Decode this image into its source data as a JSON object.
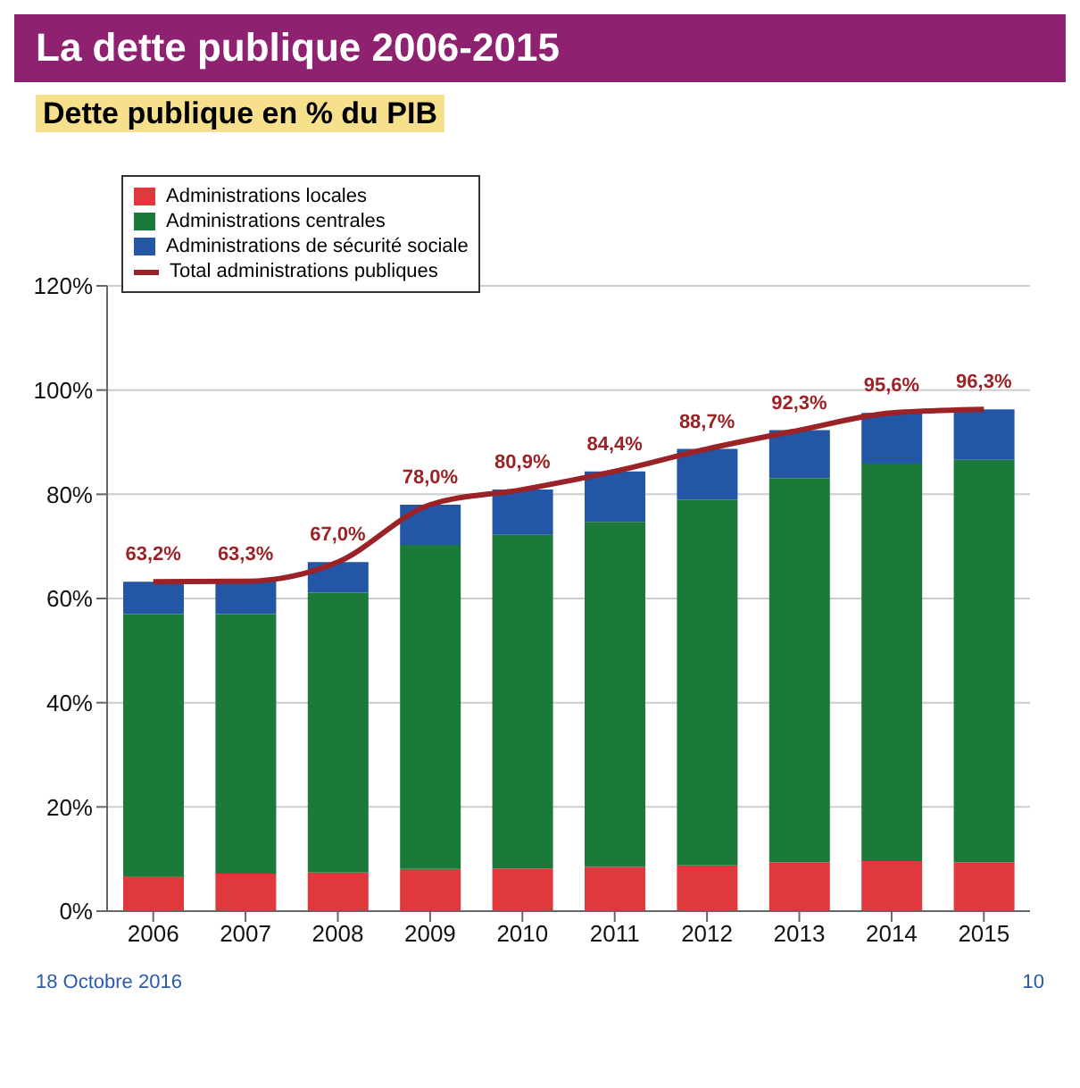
{
  "chart_data": {
    "type": "bar",
    "title": "La dette publique 2006-2015",
    "subtitle": "Dette publique en % du PIB",
    "categories": [
      "2006",
      "2007",
      "2008",
      "2009",
      "2010",
      "2011",
      "2012",
      "2013",
      "2014",
      "2015"
    ],
    "stacked": true,
    "series": [
      {
        "name": "Administrations locales",
        "color": "#e0383c",
        "values": [
          6.7,
          7.2,
          7.4,
          8.1,
          8.2,
          8.5,
          8.8,
          9.4,
          9.6,
          9.4
        ]
      },
      {
        "name": "Administrations centrales",
        "color": "#1b7a3a",
        "values": [
          50.3,
          49.8,
          53.7,
          62.2,
          64.0,
          66.2,
          70.2,
          73.7,
          76.3,
          77.2
        ]
      },
      {
        "name": "Administrations de sécurité sociale",
        "color": "#2456a6",
        "values": [
          6.2,
          6.3,
          5.9,
          7.7,
          8.7,
          9.7,
          9.7,
          9.2,
          9.7,
          9.7
        ]
      },
      {
        "name": "Total administrations publiques",
        "type": "line",
        "color": "#9b2226",
        "values": [
          63.2,
          63.3,
          67.0,
          78.0,
          80.9,
          84.4,
          88.7,
          92.3,
          95.6,
          96.3
        ],
        "value_labels": [
          "63,2%",
          "63,3%",
          "67,0%",
          "78,0%",
          "80,9%",
          "84,4%",
          "88,7%",
          "92,3%",
          "95,6%",
          "96,3%"
        ]
      }
    ],
    "ylim": [
      0,
      120
    ],
    "yticks": [
      {
        "value": 0,
        "label": "0%"
      },
      {
        "value": 20,
        "label": "20%"
      },
      {
        "value": 40,
        "label": "40%"
      },
      {
        "value": 60,
        "label": "60%"
      },
      {
        "value": 80,
        "label": "80%"
      },
      {
        "value": 100,
        "label": "100%"
      },
      {
        "value": 120,
        "label": "120%"
      }
    ],
    "grid": "y",
    "legend": "top left",
    "marker": "none",
    "annotations": [
      "18 Octobre 2016",
      "10"
    ]
  }
}
